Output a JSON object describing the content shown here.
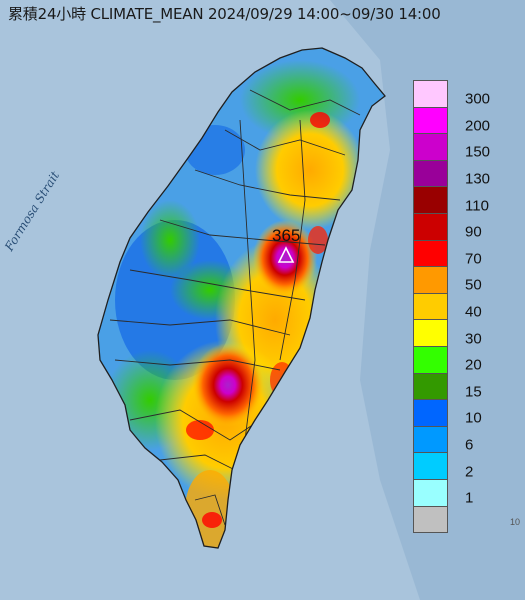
{
  "title": "累積24小時 CLIMATE_MEAN 2024/09/29 14:00~09/30 14:00",
  "sea_label": "Formosa Strait",
  "max_value_label": "365",
  "colors": {
    "sea": "#a9c4dc",
    "land": "#4aa0e6",
    "border": "#2b2b2b"
  },
  "legend": {
    "levels": [
      {
        "label": "300",
        "color": "#ffc8ff"
      },
      {
        "label": "200",
        "color": "#ff00ff"
      },
      {
        "label": "150",
        "color": "#cc00cc"
      },
      {
        "label": "130",
        "color": "#990099"
      },
      {
        "label": "110",
        "color": "#990000"
      },
      {
        "label": "90",
        "color": "#cc0000"
      },
      {
        "label": "70",
        "color": "#ff0000"
      },
      {
        "label": "50",
        "color": "#ff9900"
      },
      {
        "label": "40",
        "color": "#ffcc00"
      },
      {
        "label": "30",
        "color": "#ffff00"
      },
      {
        "label": "20",
        "color": "#33ff00"
      },
      {
        "label": "15",
        "color": "#339900"
      },
      {
        "label": "10",
        "color": "#0066ff"
      },
      {
        "label": "6",
        "color": "#0099ff"
      },
      {
        "label": "2",
        "color": "#00ccff"
      },
      {
        "label": "1",
        "color": "#99ffff"
      },
      {
        "label": "",
        "color": "#c0c0c0"
      }
    ]
  },
  "corner_label": "10"
}
